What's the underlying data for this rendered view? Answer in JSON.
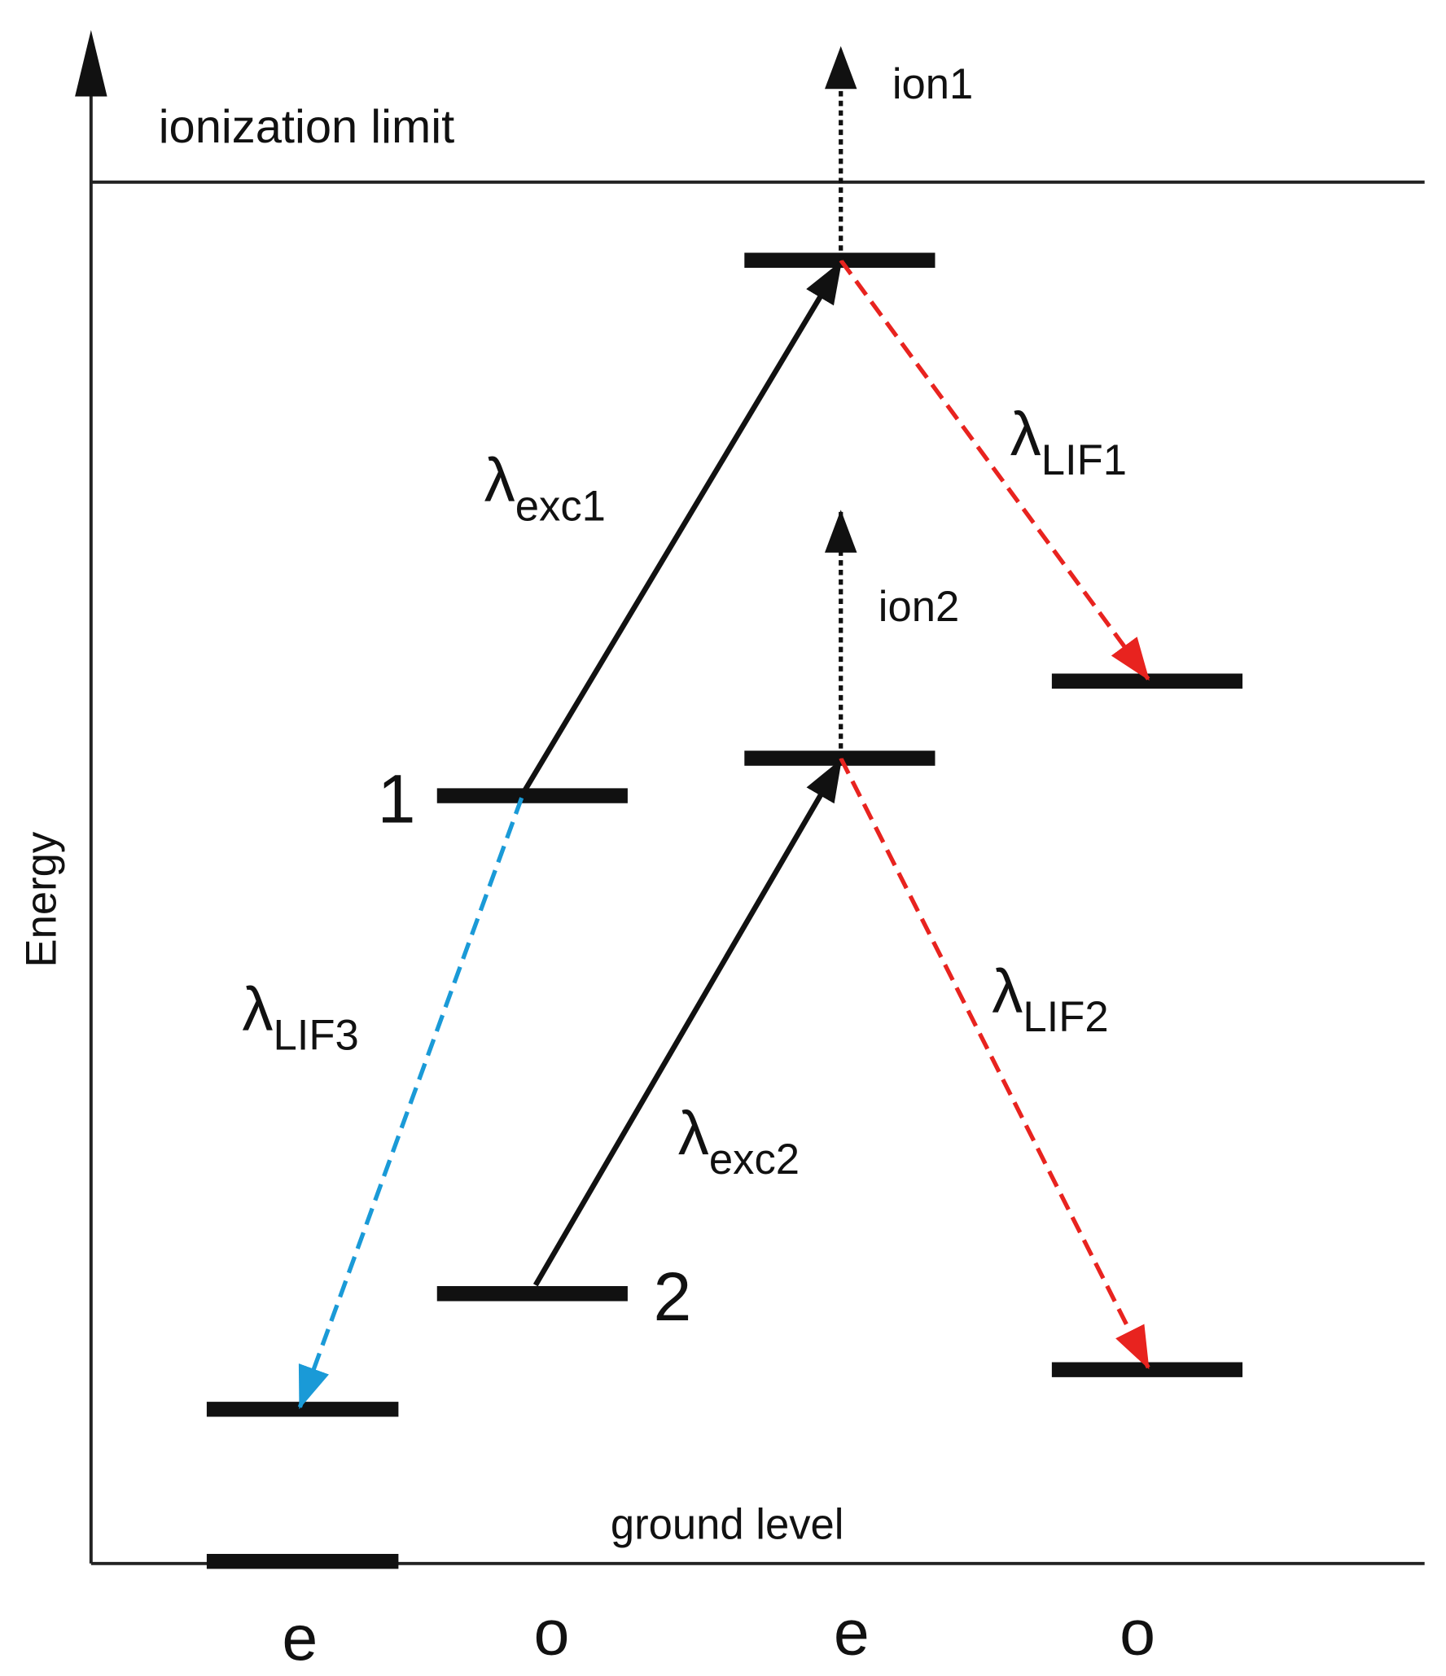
{
  "axis_label": "Energy",
  "ionization_limit": "ionization limit",
  "ground_level": "ground level",
  "level_labels": [
    "1",
    "2"
  ],
  "parities": [
    "e",
    "o",
    "e",
    "o"
  ],
  "ionization": [
    "ion1",
    "ion2"
  ],
  "transitions": [
    {
      "symbol": "λ",
      "subscript": "exc1"
    },
    {
      "symbol": "λ",
      "subscript": "exc2"
    },
    {
      "symbol": "λ",
      "subscript": "LIF1"
    },
    {
      "symbol": "λ",
      "subscript": "LIF2"
    },
    {
      "symbol": "λ",
      "subscript": "LIF3"
    }
  ]
}
